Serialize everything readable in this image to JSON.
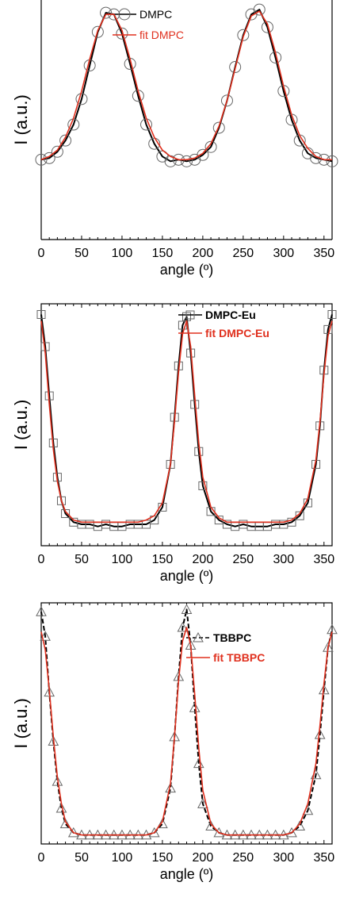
{
  "chart_data": [
    {
      "type": "line",
      "xlabel": "angle (º)",
      "ylabel": "I (a.u.)",
      "xlim": [
        0,
        360
      ],
      "xticks": [
        0,
        50,
        100,
        150,
        200,
        250,
        300,
        350
      ],
      "ylim": [
        -0.45,
        1.05
      ],
      "legend_position": "top-right",
      "legend_bold": false,
      "series": [
        {
          "name": "DMPC",
          "style": "black line with open circle markers",
          "color": "#000000",
          "x": [
            0,
            10,
            20,
            30,
            40,
            50,
            60,
            70,
            80,
            90,
            100,
            110,
            120,
            130,
            140,
            150,
            160,
            170,
            180,
            190,
            200,
            210,
            220,
            230,
            240,
            250,
            260,
            270,
            280,
            290,
            300,
            310,
            320,
            330,
            340,
            350,
            360
          ],
          "y": [
            0.05,
            0.06,
            0.1,
            0.17,
            0.27,
            0.43,
            0.64,
            0.85,
            0.97,
            0.96,
            0.84,
            0.65,
            0.45,
            0.27,
            0.15,
            0.07,
            0.04,
            0.05,
            0.04,
            0.05,
            0.08,
            0.13,
            0.25,
            0.42,
            0.63,
            0.83,
            0.96,
            0.99,
            0.88,
            0.69,
            0.48,
            0.3,
            0.17,
            0.09,
            0.06,
            0.05,
            0.04
          ]
        },
        {
          "name": "fit DMPC",
          "style": "red line",
          "color": "#e0301e",
          "x": [
            0,
            10,
            20,
            30,
            40,
            50,
            60,
            70,
            80,
            90,
            100,
            110,
            120,
            130,
            140,
            150,
            160,
            170,
            180,
            190,
            200,
            210,
            220,
            230,
            240,
            250,
            260,
            270,
            280,
            290,
            300,
            310,
            320,
            330,
            340,
            350,
            360
          ],
          "y": [
            0.05,
            0.07,
            0.11,
            0.19,
            0.31,
            0.48,
            0.68,
            0.86,
            0.96,
            0.96,
            0.86,
            0.68,
            0.48,
            0.31,
            0.19,
            0.11,
            0.07,
            0.05,
            0.05,
            0.06,
            0.09,
            0.15,
            0.26,
            0.42,
            0.62,
            0.82,
            0.95,
            0.98,
            0.9,
            0.72,
            0.51,
            0.33,
            0.2,
            0.12,
            0.07,
            0.05,
            0.05
          ]
        }
      ]
    },
    {
      "type": "line",
      "xlabel": "angle (º)",
      "ylabel": "I (a.u.)",
      "xlim": [
        0,
        360
      ],
      "xticks": [
        0,
        50,
        100,
        150,
        200,
        250,
        300,
        350
      ],
      "ylim": [
        -0.08,
        1.05
      ],
      "legend_position": "top-right",
      "legend_bold": true,
      "series": [
        {
          "name": "DMPC-Eu",
          "style": "black line with open square markers",
          "color": "#000000",
          "x": [
            0,
            5,
            10,
            15,
            20,
            25,
            30,
            40,
            50,
            60,
            70,
            80,
            90,
            100,
            110,
            120,
            130,
            140,
            150,
            160,
            165,
            170,
            175,
            180,
            185,
            190,
            195,
            200,
            210,
            220,
            230,
            240,
            250,
            260,
            270,
            280,
            290,
            300,
            310,
            320,
            330,
            340,
            345,
            350,
            355,
            360
          ],
          "y": [
            1.0,
            0.85,
            0.62,
            0.4,
            0.24,
            0.13,
            0.07,
            0.03,
            0.02,
            0.02,
            0.01,
            0.02,
            0.01,
            0.01,
            0.02,
            0.02,
            0.02,
            0.04,
            0.1,
            0.3,
            0.52,
            0.76,
            0.95,
            0.99,
            0.82,
            0.58,
            0.36,
            0.2,
            0.08,
            0.04,
            0.02,
            0.01,
            0.02,
            0.01,
            0.01,
            0.01,
            0.02,
            0.02,
            0.03,
            0.06,
            0.12,
            0.3,
            0.48,
            0.74,
            0.93,
            1.0
          ]
        },
        {
          "name": "fit DMPC-Eu",
          "style": "red line",
          "color": "#e0301e",
          "x": [
            0,
            5,
            10,
            15,
            20,
            25,
            30,
            40,
            50,
            60,
            70,
            80,
            90,
            100,
            110,
            120,
            130,
            140,
            150,
            160,
            165,
            170,
            175,
            180,
            185,
            190,
            195,
            200,
            210,
            220,
            230,
            240,
            250,
            260,
            270,
            280,
            290,
            300,
            310,
            320,
            330,
            340,
            345,
            350,
            355,
            360
          ],
          "y": [
            0.97,
            0.82,
            0.58,
            0.37,
            0.22,
            0.13,
            0.08,
            0.04,
            0.03,
            0.03,
            0.03,
            0.03,
            0.03,
            0.03,
            0.03,
            0.03,
            0.04,
            0.06,
            0.12,
            0.3,
            0.5,
            0.73,
            0.91,
            0.97,
            0.85,
            0.62,
            0.4,
            0.24,
            0.1,
            0.05,
            0.03,
            0.03,
            0.03,
            0.03,
            0.03,
            0.03,
            0.03,
            0.03,
            0.04,
            0.07,
            0.14,
            0.32,
            0.5,
            0.72,
            0.9,
            0.97
          ]
        }
      ]
    },
    {
      "type": "line",
      "xlabel": "angle (º)",
      "ylabel": "I (a.u.)",
      "xlim": [
        0,
        360
      ],
      "xticks": [
        0,
        50,
        100,
        150,
        200,
        250,
        300,
        350
      ],
      "ylim": [
        -0.03,
        1.05
      ],
      "legend_position": "top-right",
      "legend_bold": true,
      "series": [
        {
          "name": "TBBPC",
          "style": "black dashed line with open triangle markers",
          "color": "#000000",
          "x": [
            0,
            5,
            10,
            15,
            20,
            25,
            30,
            40,
            50,
            60,
            70,
            80,
            90,
            100,
            110,
            120,
            130,
            140,
            150,
            160,
            165,
            170,
            175,
            180,
            185,
            190,
            195,
            200,
            210,
            220,
            230,
            240,
            250,
            260,
            270,
            280,
            290,
            300,
            310,
            320,
            330,
            340,
            345,
            350,
            355,
            360
          ],
          "y": [
            1.01,
            0.9,
            0.65,
            0.43,
            0.25,
            0.13,
            0.06,
            0.02,
            0.01,
            0.01,
            0.01,
            0.01,
            0.01,
            0.01,
            0.01,
            0.01,
            0.01,
            0.02,
            0.06,
            0.22,
            0.45,
            0.72,
            0.94,
            1.02,
            0.86,
            0.58,
            0.33,
            0.15,
            0.05,
            0.02,
            0.01,
            0.01,
            0.01,
            0.01,
            0.01,
            0.01,
            0.01,
            0.01,
            0.02,
            0.05,
            0.12,
            0.28,
            0.46,
            0.66,
            0.85,
            0.93
          ]
        },
        {
          "name": "fit TBBPC",
          "style": "red line",
          "color": "#e0301e",
          "x": [
            0,
            5,
            10,
            15,
            20,
            25,
            30,
            40,
            50,
            60,
            70,
            80,
            90,
            100,
            110,
            120,
            130,
            140,
            150,
            160,
            165,
            170,
            175,
            180,
            185,
            190,
            195,
            200,
            210,
            220,
            230,
            240,
            250,
            260,
            270,
            280,
            290,
            300,
            310,
            320,
            330,
            340,
            345,
            350,
            355,
            360
          ],
          "y": [
            0.92,
            0.84,
            0.66,
            0.45,
            0.27,
            0.15,
            0.07,
            0.02,
            0.01,
            0.01,
            0.01,
            0.01,
            0.01,
            0.01,
            0.01,
            0.01,
            0.01,
            0.02,
            0.07,
            0.24,
            0.45,
            0.7,
            0.88,
            0.94,
            0.86,
            0.64,
            0.4,
            0.21,
            0.06,
            0.02,
            0.01,
            0.01,
            0.01,
            0.01,
            0.01,
            0.01,
            0.01,
            0.01,
            0.02,
            0.06,
            0.15,
            0.33,
            0.5,
            0.69,
            0.85,
            0.92
          ]
        }
      ]
    }
  ]
}
